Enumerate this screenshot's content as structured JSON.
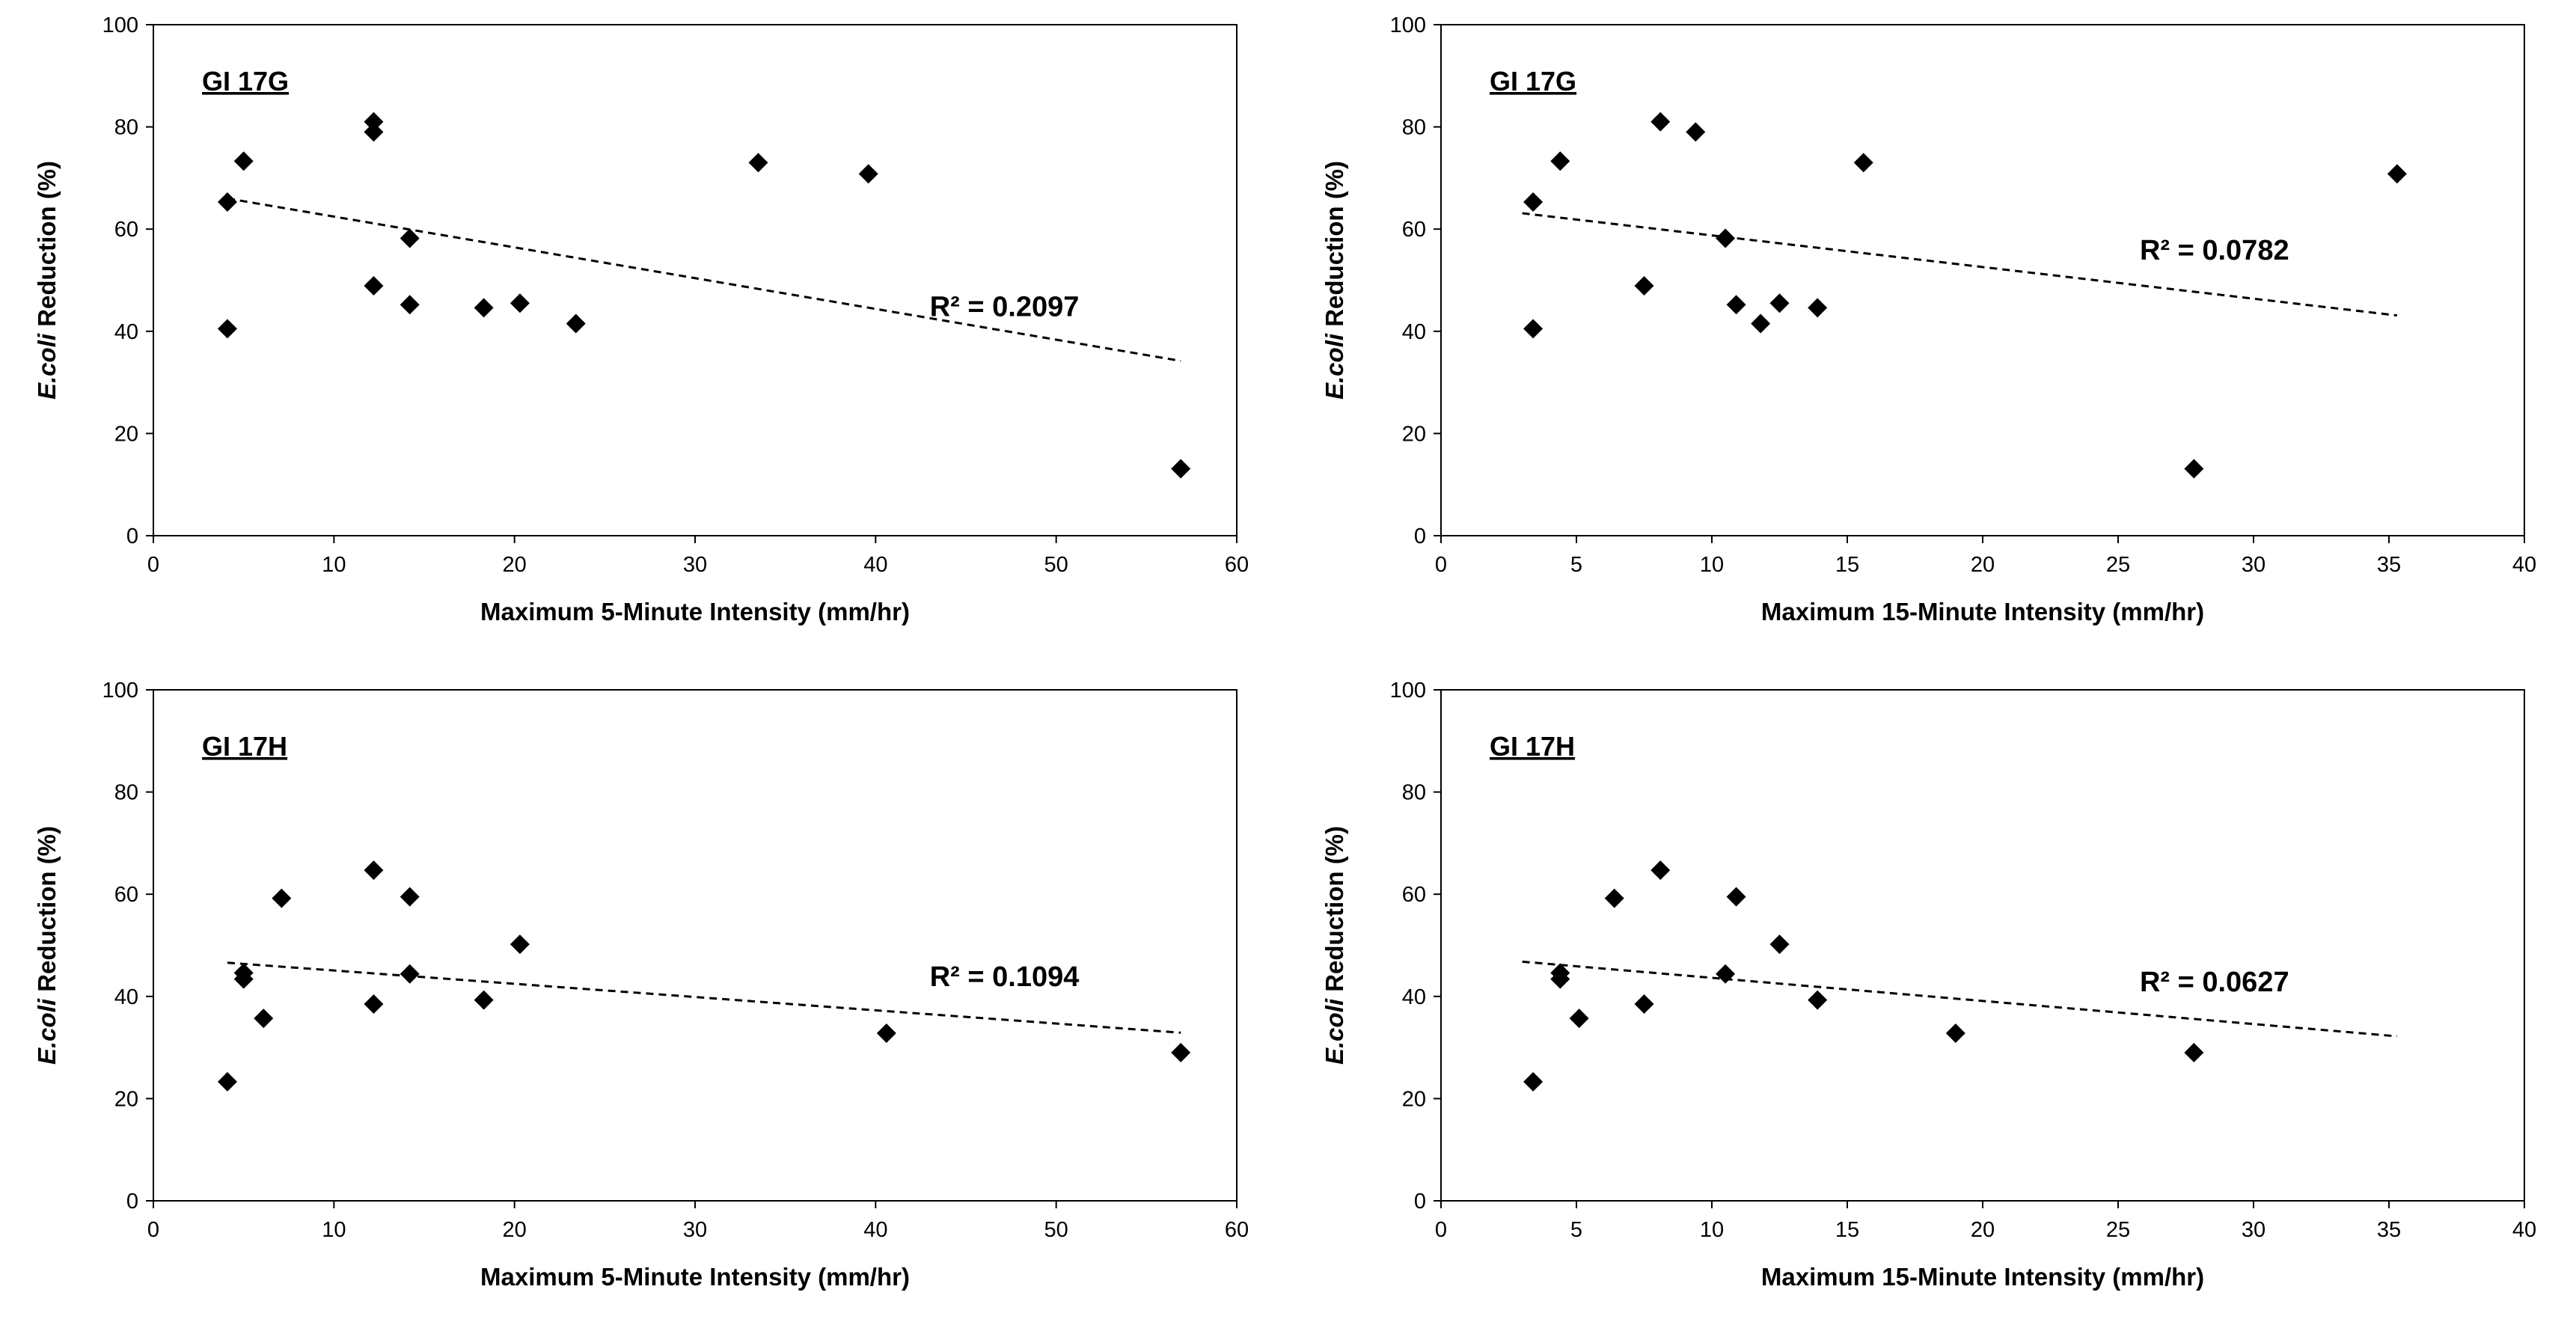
{
  "chart_data": [
    {
      "type": "scatter",
      "panel_label": "GI 17G",
      "xlabel": "Maximum 5-Minute Intensity (mm/hr)",
      "ylabel_italic": "E.coli",
      "ylabel_rest": " Reduction (%)",
      "xlim": [
        0,
        60
      ],
      "ylim": [
        0,
        100
      ],
      "xticks": [
        0,
        10,
        20,
        30,
        40,
        50,
        60
      ],
      "yticks": [
        0,
        20,
        40,
        60,
        80,
        100
      ],
      "grid": false,
      "points": [
        [
          4.1,
          65.3
        ],
        [
          4.1,
          40.5
        ],
        [
          5.0,
          73.3
        ],
        [
          12.2,
          81.0
        ],
        [
          12.2,
          79.0
        ],
        [
          12.2,
          48.9
        ],
        [
          14.2,
          58.2
        ],
        [
          14.2,
          45.2
        ],
        [
          18.3,
          44.6
        ],
        [
          20.3,
          45.5
        ],
        [
          23.4,
          41.5
        ],
        [
          33.5,
          73.0
        ],
        [
          39.6,
          70.8
        ],
        [
          56.9,
          13.1
        ]
      ],
      "trendline": {
        "x": [
          4.1,
          56.9
        ],
        "y": [
          66.0,
          34.2
        ],
        "style": "dashed"
      },
      "r2_label": "R² = 0.2097",
      "r2_anchor": [
        43.0,
        43.0
      ]
    },
    {
      "type": "scatter",
      "panel_label": "GI 17G",
      "xlabel": "Maximum 15-Minute Intensity (mm/hr)",
      "ylabel_italic": "E.coli",
      "ylabel_rest": " Reduction (%)",
      "xlim": [
        0,
        40
      ],
      "ylim": [
        0,
        100
      ],
      "xticks": [
        0,
        5,
        10,
        15,
        20,
        25,
        30,
        35,
        40
      ],
      "yticks": [
        0,
        20,
        40,
        60,
        80,
        100
      ],
      "grid": false,
      "points": [
        [
          3.4,
          65.3
        ],
        [
          3.4,
          40.5
        ],
        [
          4.4,
          73.3
        ],
        [
          8.1,
          81.0
        ],
        [
          9.4,
          79.0
        ],
        [
          7.5,
          48.9
        ],
        [
          10.5,
          58.2
        ],
        [
          10.9,
          45.2
        ],
        [
          12.5,
          45.5
        ],
        [
          11.8,
          41.5
        ],
        [
          13.9,
          44.6
        ],
        [
          15.6,
          73.0
        ],
        [
          27.8,
          13.1
        ],
        [
          35.3,
          70.8
        ]
      ],
      "trendline": {
        "x": [
          3.0,
          35.3
        ],
        "y": [
          63.1,
          43.1
        ],
        "style": "dashed"
      },
      "r2_label": "R² = 0.0782",
      "r2_anchor": [
        25.8,
        54.0
      ]
    },
    {
      "type": "scatter",
      "panel_label": "GI 17H",
      "xlabel": "Maximum 5-Minute Intensity (mm/hr)",
      "ylabel_italic": "E.coli",
      "ylabel_rest": " Reduction (%)",
      "xlim": [
        0,
        60
      ],
      "ylim": [
        0,
        100
      ],
      "xticks": [
        0,
        10,
        20,
        30,
        40,
        50,
        60
      ],
      "yticks": [
        0,
        20,
        40,
        60,
        80,
        100
      ],
      "grid": false,
      "points": [
        [
          4.1,
          23.3
        ],
        [
          5.0,
          44.6
        ],
        [
          5.0,
          43.4
        ],
        [
          6.1,
          35.7
        ],
        [
          7.1,
          59.2
        ],
        [
          12.2,
          64.7
        ],
        [
          12.2,
          38.5
        ],
        [
          14.2,
          59.5
        ],
        [
          14.2,
          44.4
        ],
        [
          18.3,
          39.3
        ],
        [
          20.3,
          50.2
        ],
        [
          40.6,
          32.8
        ],
        [
          56.9,
          29.0
        ]
      ],
      "trendline": {
        "x": [
          4.1,
          56.9
        ],
        "y": [
          46.6,
          32.9
        ],
        "style": "dashed"
      },
      "r2_label": "R² = 0.1094",
      "r2_anchor": [
        43.0,
        42.0
      ]
    },
    {
      "type": "scatter",
      "panel_label": "GI 17H",
      "xlabel": "Maximum 15-Minute Intensity (mm/hr)",
      "ylabel_italic": "E.coli",
      "ylabel_rest": " Reduction (%)",
      "xlim": [
        0,
        40
      ],
      "ylim": [
        0,
        100
      ],
      "xticks": [
        0,
        5,
        10,
        15,
        20,
        25,
        30,
        35,
        40
      ],
      "yticks": [
        0,
        20,
        40,
        60,
        80,
        100
      ],
      "grid": false,
      "points": [
        [
          3.4,
          23.3
        ],
        [
          4.4,
          44.6
        ],
        [
          4.4,
          43.4
        ],
        [
          5.1,
          35.7
        ],
        [
          6.4,
          59.2
        ],
        [
          8.1,
          64.7
        ],
        [
          7.5,
          38.5
        ],
        [
          10.9,
          59.5
        ],
        [
          10.5,
          44.4
        ],
        [
          12.5,
          50.2
        ],
        [
          13.9,
          39.3
        ],
        [
          19.0,
          32.8
        ],
        [
          27.8,
          29.0
        ]
      ],
      "trendline": {
        "x": [
          3.0,
          35.3
        ],
        "y": [
          46.8,
          32.2
        ],
        "style": "dashed"
      },
      "r2_label": "R² = 0.0627",
      "r2_anchor": [
        25.8,
        41.0
      ]
    }
  ]
}
